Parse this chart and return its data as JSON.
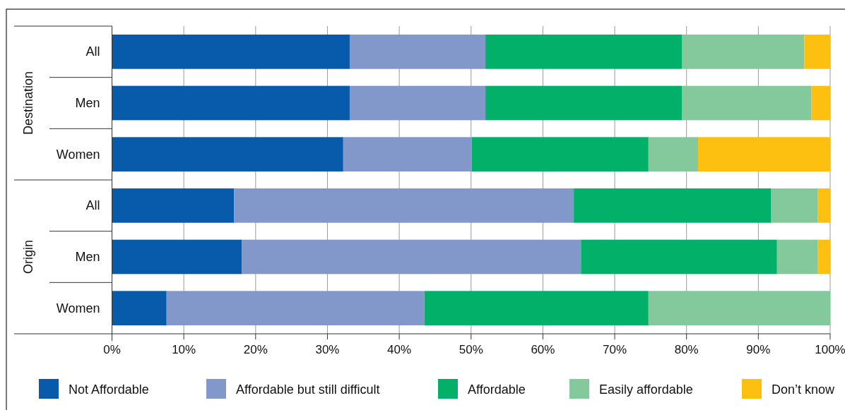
{
  "chart_data": {
    "type": "bar",
    "orientation": "horizontal",
    "stacked": true,
    "categories": [
      "All",
      "Men",
      "Women",
      "All",
      "Men",
      "Women"
    ],
    "annotations": [
      "Destination",
      "Origin"
    ],
    "series": [
      {
        "name": "Not Affordable",
        "color": "#085aab",
        "values": [
          33.1,
          33.1,
          32.2,
          17.0,
          18.1,
          7.6
        ]
      },
      {
        "name": "Affordable but still difficult",
        "color": "#8298cb",
        "values": [
          18.9,
          18.9,
          17.9,
          47.3,
          47.2,
          35.9
        ]
      },
      {
        "name": "Affordable",
        "color": "#02b06a",
        "values": [
          27.4,
          27.4,
          24.6,
          27.5,
          27.3,
          31.2
        ]
      },
      {
        "name": "Easily affordable",
        "color": "#84c99b",
        "values": [
          17.0,
          18.0,
          6.9,
          6.5,
          5.7,
          25.3
        ]
      },
      {
        "name": "Don’t know",
        "color": "#fdc010",
        "values": [
          3.6,
          2.6,
          18.4,
          1.7,
          1.7,
          0
        ]
      }
    ],
    "xlim": [
      0,
      100
    ],
    "xticks": [
      {
        "value": 0,
        "label": "0%"
      },
      {
        "value": 10,
        "label": "10%"
      },
      {
        "value": 20,
        "label": "20%"
      },
      {
        "value": 30,
        "label": "30%"
      },
      {
        "value": 40,
        "label": "40%"
      },
      {
        "value": 50,
        "label": "50%"
      },
      {
        "value": 60,
        "label": "60%"
      },
      {
        "value": 70,
        "label": "70%"
      },
      {
        "value": 80,
        "label": "80%"
      },
      {
        "value": 90,
        "label": "90%"
      },
      {
        "value": 100,
        "label": "100%"
      }
    ],
    "grid": "x",
    "legend": "bottom"
  }
}
